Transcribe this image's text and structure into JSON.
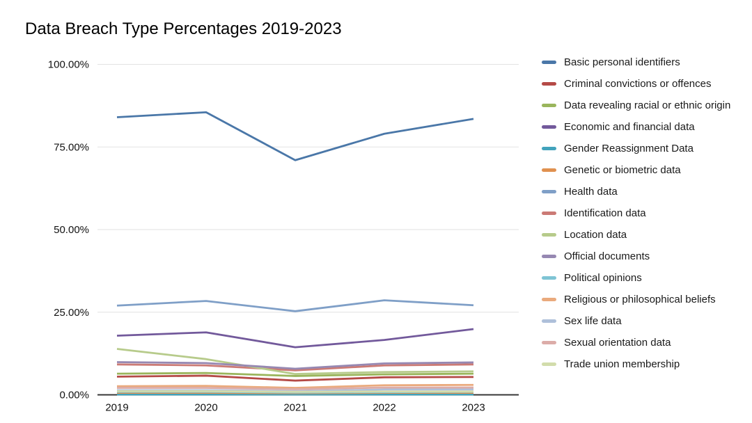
{
  "title": "Data Breach Type Percentages 2019-2023",
  "chart_data": {
    "type": "line",
    "title": "Data Breach Type Percentages 2019-2023",
    "categories": [
      "2019",
      "2020",
      "2021",
      "2022",
      "2023"
    ],
    "xlabel": "",
    "ylabel": "",
    "ylim": [
      0,
      100
    ],
    "ytick_values": [
      100,
      75,
      50,
      25,
      0
    ],
    "ytick_labels": [
      "100.00%",
      "75.00%",
      "50.00%",
      "25.00%",
      "0.00%"
    ],
    "grid": "horizontal",
    "legend_position": "right",
    "axis_color": "#373737",
    "gridline_color": "#e2e2e2",
    "series": [
      {
        "name": "Basic personal identifiers",
        "color": "#4a77a8",
        "values": [
          84.0,
          85.5,
          71.0,
          79.0,
          83.5
        ]
      },
      {
        "name": "Criminal convictions or offences",
        "color": "#b54a46",
        "values": [
          5.5,
          5.8,
          4.3,
          5.3,
          5.4
        ]
      },
      {
        "name": "Data revealing racial or ethnic origin",
        "color": "#9ab55c",
        "values": [
          6.4,
          6.6,
          5.7,
          6.2,
          6.4
        ]
      },
      {
        "name": "Economic and financial data",
        "color": "#72599b",
        "values": [
          17.9,
          18.9,
          14.4,
          16.6,
          19.9
        ]
      },
      {
        "name": "Gender Reassignment Data",
        "color": "#42a3bc",
        "values": [
          0.1,
          0.1,
          0.1,
          0.1,
          0.1
        ]
      },
      {
        "name": "Genetic or biometric data",
        "color": "#e0914f",
        "values": [
          0.6,
          0.6,
          0.5,
          0.6,
          0.6
        ]
      },
      {
        "name": "Health data",
        "color": "#7f9fc7",
        "values": [
          27.0,
          28.4,
          25.3,
          28.6,
          27.1
        ]
      },
      {
        "name": "Identification data",
        "color": "#cb7a75",
        "values": [
          9.2,
          8.9,
          7.4,
          8.9,
          9.2
        ]
      },
      {
        "name": "Location data",
        "color": "#b7cb8b",
        "values": [
          13.9,
          10.8,
          6.3,
          6.9,
          7.1
        ]
      },
      {
        "name": "Official documents",
        "color": "#9688b2",
        "values": [
          9.9,
          9.6,
          7.9,
          9.5,
          9.8
        ]
      },
      {
        "name": "Political opinions",
        "color": "#7fc4d4",
        "values": [
          0.9,
          0.9,
          0.7,
          0.8,
          0.9
        ]
      },
      {
        "name": "Religious or philosophical beliefs",
        "color": "#eaaa7d",
        "values": [
          2.6,
          2.7,
          2.1,
          2.9,
          3.0
        ]
      },
      {
        "name": "Sex life data",
        "color": "#aec0da",
        "values": [
          1.4,
          1.4,
          1.1,
          1.6,
          1.6
        ]
      },
      {
        "name": "Sexual orientation data",
        "color": "#dcaca8",
        "values": [
          2.1,
          2.1,
          1.7,
          2.2,
          2.2
        ]
      },
      {
        "name": "Trade union membership",
        "color": "#d2dcab",
        "values": [
          1.1,
          1.1,
          0.9,
          1.0,
          1.0
        ]
      }
    ]
  }
}
